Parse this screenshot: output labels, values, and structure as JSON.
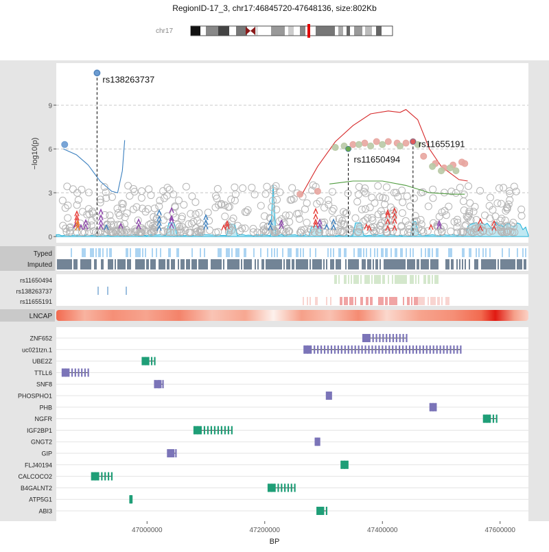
{
  "title": "RegionID-17_3, chr17:46845720-47648136, size:802Kb",
  "ideogram": {
    "chrom_label": "chr17"
  },
  "assoc_panel": {
    "ylabel": "−log10(p)",
    "yticks": [
      "0",
      "3",
      "6",
      "9"
    ],
    "ylim": [
      0,
      11.5
    ],
    "grid_lines": [
      3,
      6,
      9
    ],
    "labeled_snps": [
      {
        "name": "rs138263737",
        "pos": 46915000,
        "y": 11.2,
        "color": "#6b9bd1"
      },
      {
        "name": "rs11650494",
        "pos": 47342000,
        "y": 6.0,
        "color": "#6aa84f"
      },
      {
        "name": "rs11655191",
        "pos": 47452000,
        "y": 6.5,
        "color": "#e05a5a"
      }
    ]
  },
  "track_labels": {
    "typed": "Typed",
    "imputed": "Imputed",
    "ld": [
      "rs11650494",
      "rs138263737",
      "rs11655191"
    ],
    "cell": "LNCAP"
  },
  "genes": [
    {
      "name": "ZNF652",
      "color": "#7b74b8"
    },
    {
      "name": "uc021tzn.1",
      "color": "#7b74b8"
    },
    {
      "name": "UBE2Z",
      "color": "#1f9e77"
    },
    {
      "name": "TTLL6",
      "color": "#7b74b8"
    },
    {
      "name": "SNF8",
      "color": "#7b74b8"
    },
    {
      "name": "PHOSPHO1",
      "color": "#7b74b8"
    },
    {
      "name": "PHB",
      "color": "#7b74b8"
    },
    {
      "name": "NGFR",
      "color": "#1f9e77"
    },
    {
      "name": "IGF2BP1",
      "color": "#1f9e77"
    },
    {
      "name": "GNGT2",
      "color": "#7b74b8"
    },
    {
      "name": "GIP",
      "color": "#7b74b8"
    },
    {
      "name": "FLJ40194",
      "color": "#1f9e77"
    },
    {
      "name": "CALCOCO2",
      "color": "#1f9e77"
    },
    {
      "name": "B4GALNT2",
      "color": "#1f9e77"
    },
    {
      "name": "ATP5G1",
      "color": "#1f9e77"
    },
    {
      "name": "ABI3",
      "color": "#1f9e77"
    }
  ],
  "x_axis": {
    "label": "BP",
    "ticks": [
      "47000000",
      "47200000",
      "47400000",
      "47600000"
    ]
  },
  "chart_data": {
    "type": "scatter",
    "title": "RegionID-17_3, chr17:46845720-47648136, size:802Kb",
    "xlabel": "BP",
    "ylabel": "−log10(p)",
    "xlim": [
      46845720,
      47648136
    ],
    "ylim": [
      0,
      11.5
    ],
    "xticks": [
      47000000,
      47200000,
      47400000,
      47600000
    ],
    "yticks": [
      0,
      3,
      6,
      9
    ],
    "grid": true,
    "highlight_points": [
      {
        "label": "rs138263737",
        "x": 46915000,
        "y": 11.2
      },
      {
        "label": "rs11650494",
        "x": 47342000,
        "y": 6.0
      },
      {
        "label": "rs11655191",
        "x": 47452000,
        "y": 6.5
      }
    ],
    "series": [
      {
        "kind": "points",
        "color": "#6b9bd1",
        "points": [
          [
            46860000,
            6.3
          ],
          [
            46915000,
            11.2
          ]
        ]
      },
      {
        "kind": "points",
        "color": "#e8a6a0",
        "points": [
          [
            47260000,
            2.9
          ],
          [
            47290000,
            3.1
          ],
          [
            47350000,
            6.3
          ],
          [
            47370000,
            6.4
          ],
          [
            47390000,
            6.5
          ],
          [
            47410000,
            6.5
          ],
          [
            47425000,
            6.4
          ],
          [
            47440000,
            6.4
          ],
          [
            47452000,
            6.5
          ],
          [
            47470000,
            5.5
          ],
          [
            47490000,
            5.0
          ],
          [
            47505000,
            4.7
          ],
          [
            47520000,
            4.9
          ],
          [
            47535000,
            5.1
          ],
          [
            47540000,
            5.0
          ]
        ]
      },
      {
        "kind": "points",
        "color": "#b9c9a6",
        "points": [
          [
            47320000,
            6.1
          ],
          [
            47335000,
            6.2
          ],
          [
            47360000,
            6.3
          ],
          [
            47380000,
            6.2
          ],
          [
            47400000,
            6.3
          ],
          [
            47430000,
            6.2
          ],
          [
            47460000,
            6.3
          ],
          [
            47485000,
            4.8
          ],
          [
            47500000,
            4.5
          ],
          [
            47515000,
            4.7
          ],
          [
            47525000,
            4.5
          ]
        ]
      },
      {
        "kind": "curve",
        "color": "#3a7fbf",
        "points": [
          [
            46858000,
            6.0
          ],
          [
            46880000,
            5.6
          ],
          [
            46900000,
            4.9
          ],
          [
            46920000,
            3.8
          ],
          [
            46940000,
            3.1
          ],
          [
            46950000,
            3.0
          ],
          [
            46958000,
            4.5
          ],
          [
            46962000,
            6.6
          ]
        ]
      },
      {
        "kind": "curve",
        "color": "#d62728",
        "points": [
          [
            47262000,
            2.8
          ],
          [
            47290000,
            4.8
          ],
          [
            47320000,
            6.5
          ],
          [
            47350000,
            7.6
          ],
          [
            47380000,
            8.4
          ],
          [
            47410000,
            8.6
          ],
          [
            47430000,
            8.5
          ],
          [
            47440000,
            8.7
          ],
          [
            47460000,
            8.0
          ],
          [
            47480000,
            6.0
          ],
          [
            47500000,
            4.8
          ],
          [
            47530000,
            3.9
          ],
          [
            47545000,
            3.8
          ]
        ]
      },
      {
        "kind": "curve",
        "color": "#4d9a3c",
        "points": [
          [
            47310000,
            3.6
          ],
          [
            47350000,
            3.8
          ],
          [
            47400000,
            3.8
          ],
          [
            47440000,
            3.5
          ],
          [
            47480000,
            3.0
          ],
          [
            47520000,
            2.9
          ],
          [
            47540000,
            2.9
          ]
        ]
      }
    ]
  }
}
